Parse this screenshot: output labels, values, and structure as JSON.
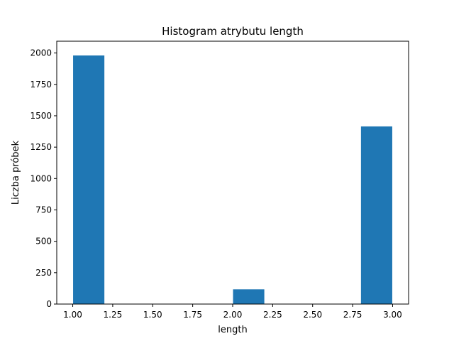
{
  "chart_data": {
    "type": "bar",
    "title": "Histogram atrybutu length",
    "xlabel": "length",
    "ylabel": "Liczba próbek",
    "xlim": [
      0.9,
      3.1
    ],
    "ylim": [
      0,
      2094
    ],
    "x_ticks": [
      1.0,
      1.25,
      1.5,
      1.75,
      2.0,
      2.25,
      2.5,
      2.75,
      3.0
    ],
    "x_tick_labels": [
      "1.00",
      "1.25",
      "1.50",
      "1.75",
      "2.00",
      "2.25",
      "2.50",
      "2.75",
      "3.00"
    ],
    "y_ticks": [
      0,
      250,
      500,
      750,
      1000,
      1250,
      1500,
      1750,
      2000
    ],
    "y_tick_labels": [
      "0",
      "250",
      "500",
      "750",
      "1000",
      "1250",
      "1500",
      "1750",
      "2000"
    ],
    "bins": [
      {
        "start": 1.0,
        "end": 1.2,
        "count": 1983
      },
      {
        "start": 2.0,
        "end": 2.2,
        "count": 120
      },
      {
        "start": 2.8,
        "end": 3.0,
        "count": 1418
      }
    ],
    "grid": false,
    "colors": {
      "bar": "#1f77b4",
      "bar_edge": "#ffffff"
    }
  }
}
